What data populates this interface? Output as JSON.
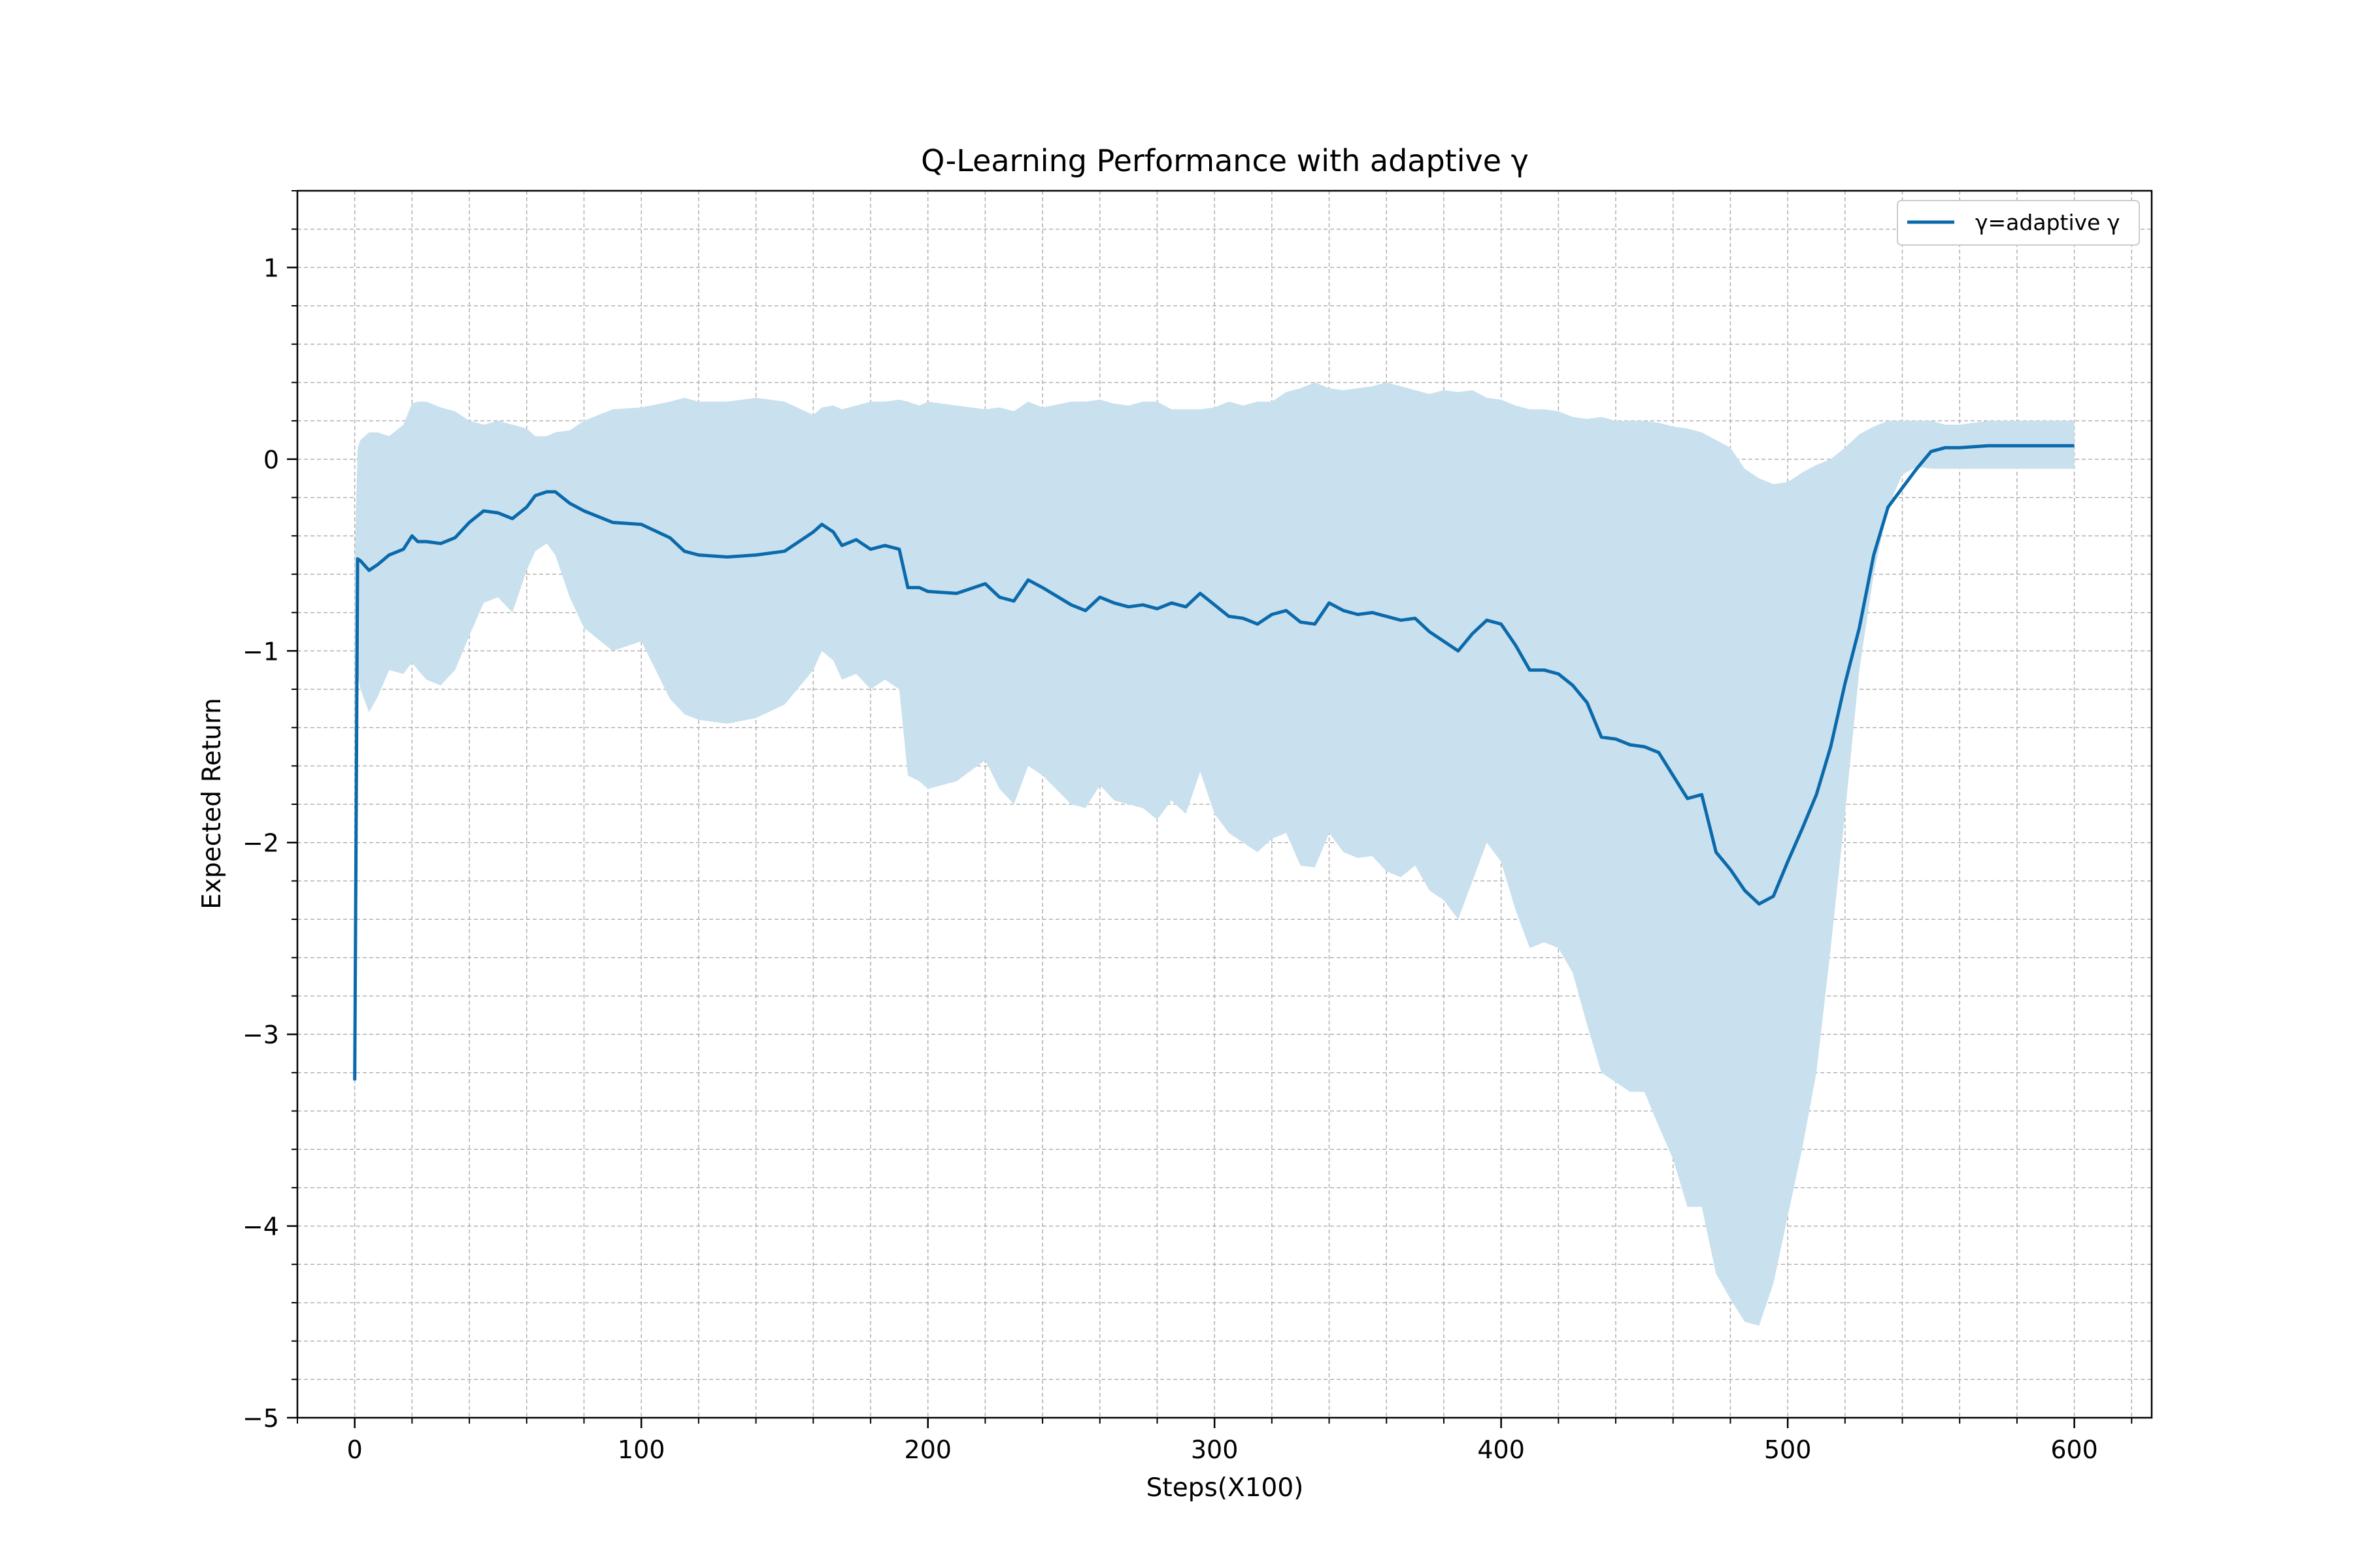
{
  "chart_data": {
    "type": "line",
    "title": "Q-Learning Performance with adaptive γ",
    "xlabel": "Steps(X100)",
    "ylabel": "Expected Return",
    "xlim": [
      -20,
      627
    ],
    "ylim": [
      -5,
      1.4
    ],
    "x_ticks": [
      0,
      100,
      200,
      300,
      400,
      500,
      600
    ],
    "x_tick_labels": [
      "0",
      "100",
      "200",
      "300",
      "400",
      "500",
      "600"
    ],
    "y_ticks": [
      -5,
      -4,
      -3,
      -2,
      -1,
      0,
      1
    ],
    "y_tick_labels": [
      "−5",
      "−4",
      "−3",
      "−2",
      "−1",
      "0",
      "1"
    ],
    "x_minor_step": 20,
    "y_minor_step": 0.2,
    "grid": true,
    "legend_position": "top-right",
    "colors": {
      "line": "#0a6aab",
      "band": "#c9e0ee",
      "grid": "#b0b0b0"
    },
    "series": [
      {
        "name": "γ=adaptive γ",
        "x": [
          0,
          1,
          2,
          5,
          8,
          12,
          17,
          20,
          22,
          25,
          30,
          35,
          40,
          45,
          50,
          55,
          60,
          63,
          67,
          70,
          75,
          80,
          90,
          100,
          110,
          115,
          120,
          130,
          140,
          150,
          160,
          163,
          167,
          170,
          175,
          180,
          185,
          190,
          193,
          197,
          200,
          210,
          220,
          225,
          230,
          235,
          240,
          250,
          255,
          260,
          265,
          270,
          275,
          280,
          285,
          290,
          295,
          300,
          305,
          310,
          315,
          320,
          325,
          330,
          335,
          340,
          345,
          350,
          355,
          360,
          365,
          370,
          375,
          380,
          385,
          390,
          395,
          400,
          405,
          410,
          415,
          420,
          425,
          430,
          435,
          440,
          445,
          450,
          455,
          460,
          465,
          470,
          475,
          480,
          485,
          490,
          495,
          500,
          505,
          510,
          515,
          520,
          525,
          530,
          535,
          540,
          545,
          550,
          555,
          560,
          570,
          580,
          590,
          600
        ],
        "y": [
          -3.24,
          -0.52,
          -0.53,
          -0.58,
          -0.55,
          -0.5,
          -0.47,
          -0.4,
          -0.43,
          -0.43,
          -0.44,
          -0.41,
          -0.33,
          -0.27,
          -0.28,
          -0.31,
          -0.25,
          -0.19,
          -0.17,
          -0.17,
          -0.23,
          -0.27,
          -0.33,
          -0.34,
          -0.41,
          -0.48,
          -0.5,
          -0.51,
          -0.5,
          -0.48,
          -0.38,
          -0.34,
          -0.38,
          -0.45,
          -0.42,
          -0.47,
          -0.45,
          -0.47,
          -0.67,
          -0.67,
          -0.69,
          -0.7,
          -0.65,
          -0.72,
          -0.74,
          -0.63,
          -0.67,
          -0.76,
          -0.79,
          -0.72,
          -0.75,
          -0.77,
          -0.76,
          -0.78,
          -0.75,
          -0.77,
          -0.7,
          -0.76,
          -0.82,
          -0.83,
          -0.86,
          -0.81,
          -0.79,
          -0.85,
          -0.86,
          -0.75,
          -0.79,
          -0.81,
          -0.8,
          -0.82,
          -0.84,
          -0.83,
          -0.9,
          -0.95,
          -1.0,
          -0.91,
          -0.84,
          -0.86,
          -0.97,
          -1.1,
          -1.1,
          -1.12,
          -1.18,
          -1.27,
          -1.45,
          -1.46,
          -1.49,
          -1.5,
          -1.53,
          -1.65,
          -1.77,
          -1.75,
          -2.05,
          -2.14,
          -2.25,
          -2.32,
          -2.28,
          -2.1,
          -1.93,
          -1.75,
          -1.5,
          -1.17,
          -0.88,
          -0.5,
          -0.25,
          -0.15,
          -0.05,
          0.04,
          0.06,
          0.06,
          0.07,
          0.07,
          0.07,
          0.07
        ],
        "upper": [
          -0.52,
          0.06,
          0.1,
          0.14,
          0.14,
          0.12,
          0.18,
          0.29,
          0.3,
          0.3,
          0.27,
          0.25,
          0.2,
          0.18,
          0.2,
          0.18,
          0.16,
          0.12,
          0.12,
          0.14,
          0.15,
          0.2,
          0.26,
          0.27,
          0.3,
          0.32,
          0.3,
          0.3,
          0.32,
          0.3,
          0.23,
          0.27,
          0.28,
          0.26,
          0.28,
          0.3,
          0.3,
          0.31,
          0.3,
          0.28,
          0.3,
          0.28,
          0.26,
          0.27,
          0.25,
          0.3,
          0.27,
          0.3,
          0.3,
          0.31,
          0.29,
          0.28,
          0.3,
          0.3,
          0.26,
          0.26,
          0.26,
          0.27,
          0.3,
          0.28,
          0.3,
          0.3,
          0.35,
          0.37,
          0.4,
          0.37,
          0.36,
          0.37,
          0.38,
          0.4,
          0.38,
          0.36,
          0.34,
          0.36,
          0.35,
          0.36,
          0.32,
          0.31,
          0.28,
          0.26,
          0.26,
          0.25,
          0.22,
          0.21,
          0.22,
          0.2,
          0.2,
          0.2,
          0.19,
          0.17,
          0.16,
          0.14,
          0.1,
          0.06,
          -0.05,
          -0.1,
          -0.13,
          -0.12,
          -0.07,
          -0.03,
          0.0,
          0.06,
          0.13,
          0.17,
          0.2,
          0.2,
          0.2,
          0.2,
          0.18,
          0.18,
          0.2,
          0.2,
          0.2,
          0.2
        ],
        "lower": [
          -3.24,
          -1.12,
          -1.2,
          -1.32,
          -1.24,
          -1.1,
          -1.12,
          -1.06,
          -1.1,
          -1.15,
          -1.18,
          -1.1,
          -0.92,
          -0.75,
          -0.72,
          -0.8,
          -0.58,
          -0.48,
          -0.44,
          -0.5,
          -0.72,
          -0.88,
          -1.0,
          -0.95,
          -1.25,
          -1.33,
          -1.36,
          -1.38,
          -1.35,
          -1.28,
          -1.1,
          -1.0,
          -1.05,
          -1.15,
          -1.12,
          -1.2,
          -1.15,
          -1.2,
          -1.65,
          -1.68,
          -1.72,
          -1.68,
          -1.57,
          -1.72,
          -1.8,
          -1.6,
          -1.65,
          -1.8,
          -1.82,
          -1.7,
          -1.78,
          -1.8,
          -1.82,
          -1.88,
          -1.78,
          -1.85,
          -1.63,
          -1.85,
          -1.95,
          -2.0,
          -2.05,
          -1.98,
          -1.95,
          -2.12,
          -2.13,
          -1.95,
          -2.05,
          -2.08,
          -2.07,
          -2.15,
          -2.18,
          -2.12,
          -2.25,
          -2.3,
          -2.4,
          -2.2,
          -2.0,
          -2.1,
          -2.35,
          -2.55,
          -2.52,
          -2.55,
          -2.68,
          -2.95,
          -3.2,
          -3.25,
          -3.3,
          -3.3,
          -3.48,
          -3.65,
          -3.9,
          -3.9,
          -4.25,
          -4.38,
          -4.5,
          -4.52,
          -4.3,
          -3.95,
          -3.6,
          -3.2,
          -2.55,
          -1.85,
          -1.1,
          -0.6,
          -0.25,
          -0.08,
          -0.04,
          -0.05,
          -0.05,
          -0.05,
          -0.05,
          -0.05,
          -0.05,
          -0.05
        ]
      }
    ]
  }
}
